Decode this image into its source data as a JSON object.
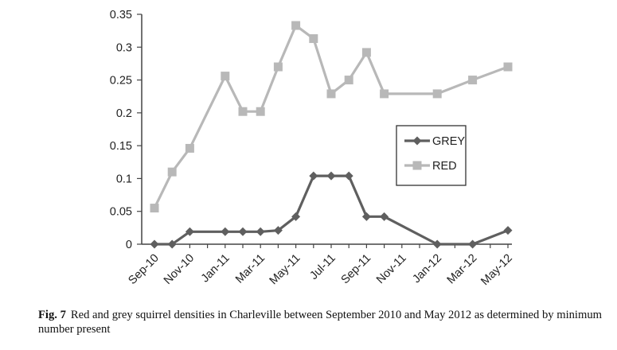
{
  "chart_data": {
    "type": "line",
    "x_tick_labels": [
      "Sep-10",
      "Nov-10",
      "Jan-11",
      "Mar-11",
      "May-11",
      "Jul-11",
      "Sep-11",
      "Nov-11",
      "Jan-12",
      "Mar-12",
      "May-12"
    ],
    "ylim": [
      0,
      0.35
    ],
    "y_ticks": [
      "0",
      "0.05",
      "0.1",
      "0.15",
      "0.2",
      "0.25",
      "0.3",
      "0.35"
    ],
    "grid": false,
    "legend_position": "right-middle",
    "series": [
      {
        "name": "GREY",
        "color": "#5f5f5f",
        "marker": "diamond",
        "x": [
          "Sep-10",
          "Oct-10",
          "Nov-10",
          "Jan-11",
          "Feb-11",
          "Mar-11",
          "Apr-11",
          "May-11",
          "Jun-11",
          "Jul-11",
          "Aug-11",
          "Sep-11",
          "Oct-11",
          "Jan-12",
          "Mar-12",
          "May-12"
        ],
        "values": [
          0,
          0,
          0.019,
          0.019,
          0.019,
          0.019,
          0.021,
          0.042,
          0.104,
          0.104,
          0.104,
          0.042,
          0.042,
          0,
          0,
          0.021
        ]
      },
      {
        "name": "RED",
        "color": "#b8b8b8",
        "marker": "square",
        "x": [
          "Sep-10",
          "Oct-10",
          "Nov-10",
          "Jan-11",
          "Feb-11",
          "Mar-11",
          "Apr-11",
          "May-11",
          "Jun-11",
          "Jul-11",
          "Aug-11",
          "Sep-11",
          "Oct-11",
          "Jan-12",
          "Mar-12",
          "May-12"
        ],
        "values": [
          0.055,
          0.11,
          0.146,
          0.256,
          0.202,
          0.202,
          0.27,
          0.333,
          0.313,
          0.229,
          0.25,
          0.292,
          0.229,
          0.229,
          0.25,
          0.27
        ]
      }
    ]
  },
  "caption": {
    "label": "Fig. 7",
    "text": "Red and grey squirrel densities in Charleville between September 2010 and May 2012 as determined by minimum number present"
  }
}
